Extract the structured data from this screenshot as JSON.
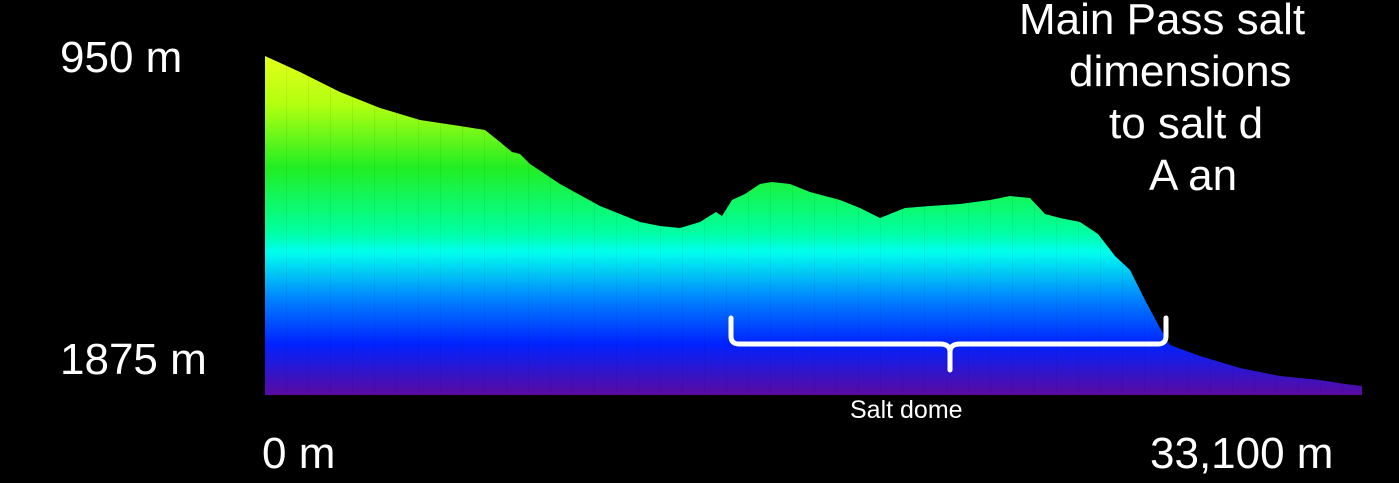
{
  "depth_axis": {
    "top_label": "950 m",
    "bottom_label": "1875 m"
  },
  "distance_axis": {
    "start_label": "0 m",
    "end_label": "33,100 m"
  },
  "caption": {
    "line1": "Main Pass salt",
    "line2": "dimensions",
    "line3": "to salt d",
    "line4": "A an"
  },
  "annotation": {
    "salt_dome_label": "Salt dome"
  },
  "colors": {
    "background": "#000000",
    "shallow": "#e6ff1a",
    "mid_green": "#22ee22",
    "cyan": "#00ffee",
    "blue": "#0022ff",
    "deep": "#5a0aa0",
    "bracket": "#ffffff"
  }
}
